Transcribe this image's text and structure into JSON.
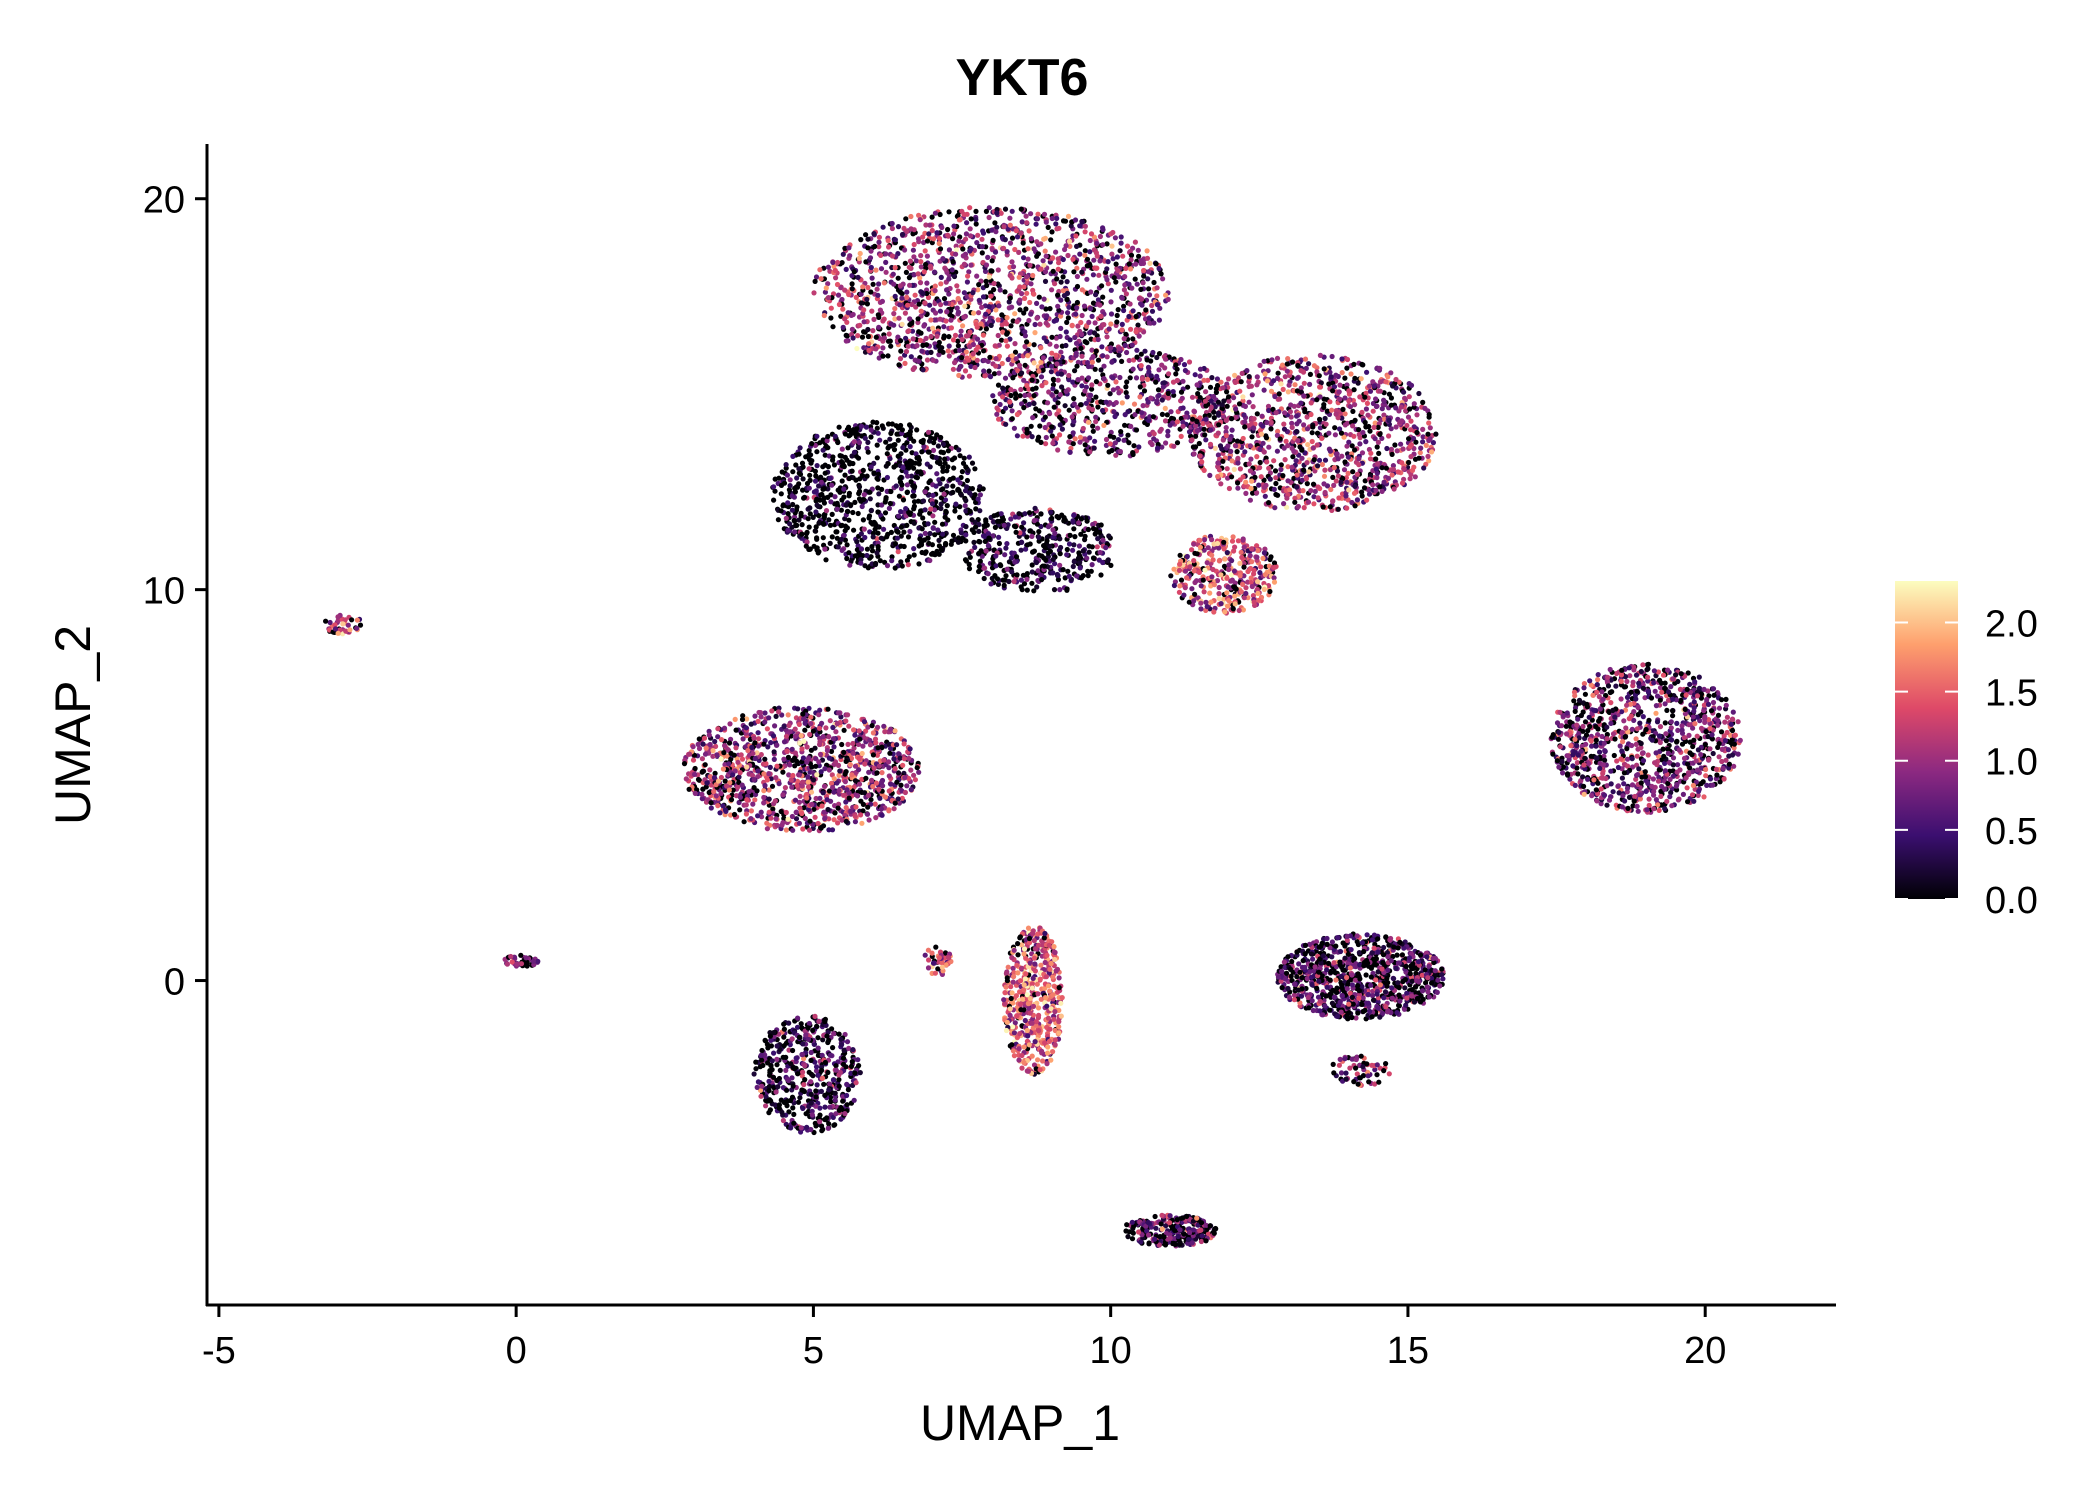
{
  "chart_data": {
    "type": "scatter",
    "title": "YKT6",
    "xlabel": "UMAP_1",
    "ylabel": "UMAP_2",
    "xlim": [
      -5.2,
      22.2
    ],
    "ylim": [
      -8.3,
      21.4
    ],
    "xticks": [
      -5,
      0,
      5,
      10,
      15,
      20
    ],
    "yticks": [
      0,
      10,
      20
    ],
    "grid": false,
    "legend": {
      "placement": "right",
      "type": "colorbar",
      "range": [
        0,
        2.3
      ],
      "ticks": [
        0.0,
        0.5,
        1.0,
        1.5,
        2.0
      ],
      "tick_labels": [
        "0.0",
        "0.5",
        "1.0",
        "1.5",
        "2.0"
      ],
      "colormap": [
        "#000004",
        "#3b0f70",
        "#8c2981",
        "#de4968",
        "#fe9f6d",
        "#fcfdbf"
      ]
    },
    "clusters": [
      {
        "name": "top-main",
        "cx": 8.0,
        "cy": 17.6,
        "rx": 3.0,
        "ry": 2.2,
        "n": 1500,
        "mean_expr": 0.95
      },
      {
        "name": "top-right-lobe",
        "cx": 13.4,
        "cy": 14.0,
        "rx": 2.1,
        "ry": 2.0,
        "n": 1100,
        "mean_expr": 1.0
      },
      {
        "name": "top-middle-band",
        "cx": 10.0,
        "cy": 14.8,
        "rx": 2.0,
        "ry": 1.4,
        "n": 600,
        "mean_expr": 0.8
      },
      {
        "name": "top-lower-left",
        "cx": 6.1,
        "cy": 12.4,
        "rx": 1.8,
        "ry": 1.9,
        "n": 900,
        "mean_expr": 0.2
      },
      {
        "name": "top-lower-middle",
        "cx": 8.8,
        "cy": 11.0,
        "rx": 1.3,
        "ry": 1.1,
        "n": 400,
        "mean_expr": 0.35
      },
      {
        "name": "top-bottom-lobe",
        "cx": 11.9,
        "cy": 10.4,
        "rx": 0.9,
        "ry": 1.0,
        "n": 350,
        "mean_expr": 1.3
      },
      {
        "name": "far-left-streak",
        "cx": -2.9,
        "cy": 9.1,
        "rx": 0.35,
        "ry": 0.25,
        "n": 40,
        "mean_expr": 1.2
      },
      {
        "name": "left-mid",
        "cx": 4.8,
        "cy": 5.4,
        "rx": 2.0,
        "ry": 1.6,
        "n": 1100,
        "mean_expr": 1.0
      },
      {
        "name": "right-mid",
        "cx": 19.0,
        "cy": 6.2,
        "rx": 1.6,
        "ry": 1.9,
        "n": 1000,
        "mean_expr": 0.8
      },
      {
        "name": "center-tiny",
        "cx": 0.1,
        "cy": 0.5,
        "rx": 0.3,
        "ry": 0.15,
        "n": 40,
        "mean_expr": 0.9
      },
      {
        "name": "lower-left",
        "cx": 4.9,
        "cy": -2.4,
        "rx": 0.9,
        "ry": 1.5,
        "n": 500,
        "mean_expr": 0.5
      },
      {
        "name": "small-mid",
        "cx": 7.1,
        "cy": 0.5,
        "rx": 0.25,
        "ry": 0.4,
        "n": 40,
        "mean_expr": 1.2
      },
      {
        "name": "vertical-strip",
        "cx": 8.7,
        "cy": -0.5,
        "rx": 0.5,
        "ry": 1.9,
        "n": 500,
        "mean_expr": 1.4
      },
      {
        "name": "lower-right",
        "cx": 14.2,
        "cy": 0.1,
        "rx": 1.4,
        "ry": 1.1,
        "n": 900,
        "mean_expr": 0.6
      },
      {
        "name": "lower-right-tail",
        "cx": 14.2,
        "cy": -2.3,
        "rx": 0.5,
        "ry": 0.4,
        "n": 60,
        "mean_expr": 0.9
      },
      {
        "name": "bottom",
        "cx": 11.0,
        "cy": -6.4,
        "rx": 0.8,
        "ry": 0.4,
        "n": 250,
        "mean_expr": 0.7
      }
    ]
  }
}
